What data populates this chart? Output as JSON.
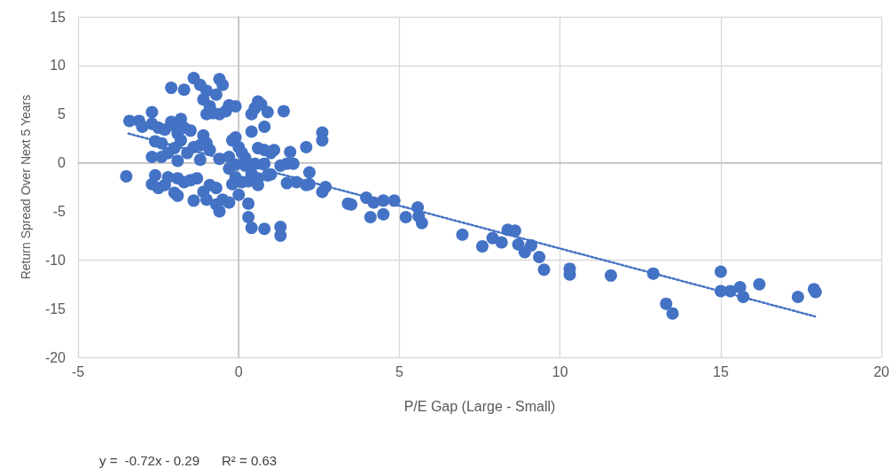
{
  "chart_data": {
    "type": "scatter",
    "xlabel": "P/E Gap (Large - Small)",
    "ylabel": "Return Spread Over Next 5 Years",
    "xlim": [
      -5,
      20
    ],
    "xticks": [
      -5,
      0,
      5,
      10,
      15,
      20
    ],
    "ylim": [
      -20,
      15
    ],
    "yticks": [
      -20,
      -15,
      -10,
      -5,
      0,
      5,
      10,
      15
    ],
    "grid": true,
    "marker": "circle",
    "annotations": [
      "y =  -0.72x - 0.29",
      "R² = 0.63"
    ],
    "series": [
      {
        "color": "#4472c4",
        "x": [
          -3.5,
          -3.4,
          -3.1,
          -3.0,
          -2.7,
          -2.7,
          -2.5,
          -2.3,
          -2.1,
          -2.0,
          -1.8,
          -1.7,
          -1.5,
          -1.9,
          -2.7,
          -2.6,
          -2.4,
          -2.4,
          -2.2,
          -2.0,
          -1.9,
          -1.8,
          -1.6,
          -1.4,
          -1.2,
          -1.1,
          -1.0,
          -1.2,
          -0.9,
          -0.6,
          -0.3,
          -0.1,
          0.0,
          0.1,
          -0.2,
          -2.7,
          -2.5,
          -2.6,
          -2.3,
          -2.2,
          -1.9,
          -1.7,
          -1.5,
          -1.3,
          -2.0,
          -1.9,
          -1.4,
          -1.1,
          -1.0,
          -0.9,
          -0.7,
          -0.7,
          -0.6,
          -0.5,
          -0.3,
          -0.2,
          -0.1,
          -0.3,
          -0.1,
          0.2,
          0.0,
          0.3,
          0.3,
          0.4,
          0.8,
          -1.4,
          -1.2,
          -1.0,
          -0.7,
          -0.6,
          -0.5,
          -2.1,
          -1.7,
          -1.1,
          -0.9,
          -1.0,
          -0.8,
          -0.6,
          -0.4,
          -0.3,
          -0.1,
          0.4,
          0.5,
          0.6,
          0.7,
          0.9,
          1.4,
          0.4,
          0.8,
          0.6,
          0.8,
          1.0,
          1.1,
          0.2,
          0.5,
          0.8,
          0.4,
          0.6,
          0.6,
          0.9,
          1.0,
          1.3,
          1.5,
          1.6,
          1.7,
          1.5,
          1.8,
          2.1,
          2.2,
          2.1,
          2.2,
          2.6,
          2.6,
          2.6,
          2.7,
          1.3,
          1.3,
          0.3,
          0.1,
          3.4,
          3.5,
          3.97,
          4.2,
          4.5,
          4.84,
          4.1,
          4.5,
          5.2,
          5.57,
          5.6,
          5.7,
          6.96,
          7.58,
          7.9,
          8.18,
          8.37,
          8.6,
          8.7,
          8.9,
          9.1,
          9.35,
          9.5,
          10.3,
          10.3,
          11.58,
          12.9,
          13.3,
          13.5,
          15.0,
          15.0,
          15.3,
          15.6,
          15.7,
          16.2,
          17.4,
          17.9,
          17.95
        ],
        "values": [
          -1.4,
          4.3,
          4.3,
          3.7,
          5.2,
          4.0,
          3.6,
          3.4,
          4.2,
          3.8,
          4.5,
          3.6,
          3.3,
          3.0,
          0.6,
          2.2,
          2.0,
          0.6,
          1.0,
          1.5,
          0.2,
          2.3,
          1.0,
          1.6,
          1.8,
          2.8,
          2.0,
          0.3,
          1.3,
          0.4,
          0.6,
          2.6,
          1.6,
          1.0,
          2.3,
          -2.2,
          -2.6,
          -1.3,
          -2.3,
          -1.5,
          -1.6,
          -2.0,
          -1.8,
          -1.6,
          -3.1,
          -3.4,
          -3.9,
          -3.0,
          -3.8,
          -2.3,
          -2.6,
          -4.3,
          -5.0,
          -3.8,
          -4.1,
          -2.2,
          -1.5,
          -0.6,
          -0.2,
          -0.3,
          -3.3,
          -4.2,
          -5.6,
          -6.7,
          -6.8,
          8.7,
          8.0,
          7.4,
          7.0,
          8.6,
          8.0,
          7.7,
          7.5,
          6.5,
          5.8,
          5.0,
          5.1,
          5.0,
          5.3,
          5.9,
          5.8,
          5.0,
          5.6,
          6.3,
          6.0,
          5.2,
          5.3,
          3.2,
          3.7,
          1.5,
          1.3,
          1.0,
          1.3,
          0.5,
          -0.1,
          -0.1,
          -1.1,
          -1.6,
          -2.3,
          -1.3,
          -1.2,
          -0.3,
          -0.1,
          1.1,
          -0.1,
          -2.1,
          -2.0,
          -2.3,
          -2.2,
          1.6,
          -1.0,
          3.1,
          2.3,
          -3.0,
          -2.5,
          -6.6,
          -7.5,
          -1.9,
          -2.0,
          -4.2,
          -4.3,
          -3.6,
          -4.1,
          -3.9,
          -3.9,
          -5.6,
          -5.3,
          -5.6,
          -4.6,
          -5.5,
          -6.2,
          -7.4,
          -8.6,
          -7.75,
          -8.2,
          -6.9,
          -7.0,
          -8.4,
          -9.2,
          -8.5,
          -9.7,
          -11.0,
          -10.9,
          -11.5,
          -11.6,
          -11.4,
          -14.5,
          -15.5,
          -11.2,
          -13.2,
          -13.2,
          -12.8,
          -13.8,
          -12.5,
          -13.8,
          -13.0,
          -13.3
        ]
      },
      {
        "type": "line",
        "line_style": "dotted",
        "marker": "none",
        "color": "#4472c4",
        "x": [
          -3.43,
          17.93
        ],
        "values": [
          3.0,
          -15.8
        ]
      }
    ]
  }
}
